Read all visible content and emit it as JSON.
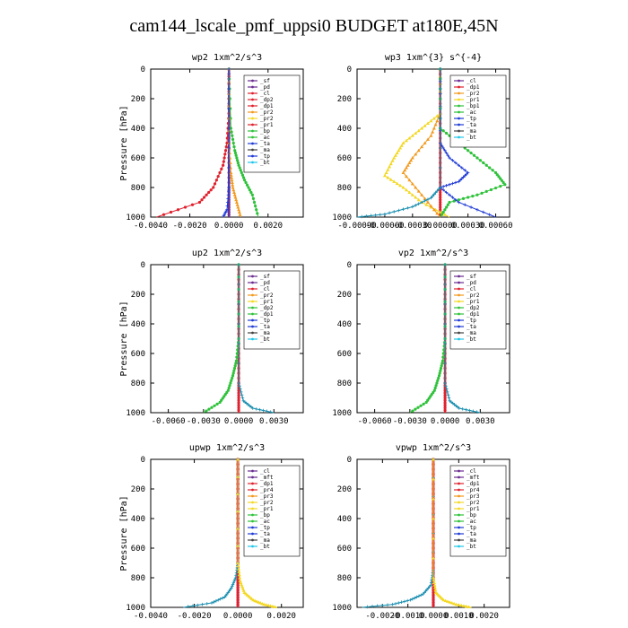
{
  "title": "cam144_lscale_pmf_uppsi0  BUDGET at180E,45N",
  "colors": {
    "purple": "#6a2c91",
    "red": "#e0212d",
    "orange": "#f39a1e",
    "yellow": "#f4d823",
    "green": "#2ec23a",
    "blue": "#1f3bd6",
    "teal": "#1a8fb0",
    "cyan": "#22c8e8",
    "gray": "#444444"
  },
  "chart_data": [
    {
      "type": "line",
      "title": "wp2  1xm^2/s^3",
      "ylabel": "Pressure [hPa]",
      "ylim": [
        1000,
        0
      ],
      "xlim": [
        -0.004,
        0.0038
      ],
      "xticks": [
        "-0.0040",
        "-0.0020",
        "0.0000",
        "0.0020"
      ],
      "xtick_values": [
        -0.004,
        -0.002,
        0.0,
        0.002
      ],
      "yticks": [
        "0",
        "200",
        "400",
        "600",
        "800",
        "1000"
      ],
      "legend": [
        "_sf",
        "_pd",
        "_cl",
        "_dp2",
        "_dp1",
        "_pr2",
        "_pr2",
        "_pr1",
        "_bp",
        "_ac",
        "_ta",
        "_ma",
        "_tp",
        "_bt"
      ],
      "legend_colors": [
        "purple",
        "purple",
        "red",
        "red",
        "red",
        "orange",
        "yellow",
        "red",
        "green",
        "green",
        "blue",
        "gray",
        "blue",
        "cyan"
      ],
      "series": [
        {
          "color": "purple",
          "x": [
            0,
            0,
            0,
            0,
            0,
            0,
            0
          ],
          "y": [
            0,
            200,
            400,
            600,
            800,
            900,
            1000
          ]
        },
        {
          "color": "red",
          "x": [
            0,
            0,
            -0.0001,
            -0.0003,
            -0.0008,
            -0.0015,
            -0.0037
          ],
          "y": [
            0,
            300,
            500,
            650,
            800,
            900,
            1000
          ]
        },
        {
          "color": "green",
          "x": [
            0,
            0.0001,
            0.0003,
            0.0005,
            0.0008,
            0.0012,
            0.0015
          ],
          "y": [
            0,
            400,
            550,
            650,
            750,
            850,
            1000
          ]
        },
        {
          "color": "orange",
          "x": [
            0,
            0,
            0.0001,
            0.0002,
            0.0004,
            0.0006
          ],
          "y": [
            0,
            500,
            700,
            800,
            900,
            1000
          ]
        },
        {
          "color": "blue",
          "x": [
            0,
            0,
            -0.0001,
            -0.0003
          ],
          "y": [
            0,
            800,
            950,
            1000
          ]
        }
      ]
    },
    {
      "type": "line",
      "title": "wp3  1xm^{3} s^{-4}",
      "ylabel": "",
      "ylim": [
        1000,
        0
      ],
      "xlim": [
        -0.0009,
        0.00075
      ],
      "xticks": [
        "-0.00090",
        "-0.00060",
        "-0.00030",
        "0.00000",
        "0.00030",
        "0.00060"
      ],
      "xtick_values": [
        -0.0009,
        -0.0006,
        -0.0003,
        0.0,
        0.0003,
        0.0006
      ],
      "yticks": [
        "0",
        "200",
        "400",
        "600",
        "800",
        "1000"
      ],
      "legend": [
        "_cl",
        "_dp1",
        "_pr2",
        "_pr1",
        "_bp1",
        "_ac",
        "_tp",
        "_ta",
        "_ma",
        "_bt"
      ],
      "legend_colors": [
        "purple",
        "red",
        "orange",
        "yellow",
        "green",
        "green",
        "blue",
        "blue",
        "gray",
        "cyan"
      ],
      "series": [
        {
          "color": "red",
          "x": [
            0,
            0,
            0,
            0,
            0,
            0,
            0
          ],
          "y": [
            0,
            200,
            400,
            600,
            800,
            900,
            1000
          ]
        },
        {
          "color": "yellow",
          "x": [
            0,
            0,
            -0.0002,
            -0.0004,
            -0.0005,
            -0.0006,
            -0.0004,
            -0.0002,
            0.0001
          ],
          "y": [
            0,
            300,
            400,
            500,
            600,
            720,
            800,
            900,
            1000
          ]
        },
        {
          "color": "orange",
          "x": [
            0,
            0,
            -0.0001,
            -0.0003,
            -0.0004,
            -0.0002,
            0
          ],
          "y": [
            0,
            300,
            450,
            600,
            700,
            850,
            1000
          ]
        },
        {
          "color": "green",
          "x": [
            0,
            0,
            0.0002,
            0.0004,
            0.0006,
            0.0007,
            0.0004,
            0.0001,
            0
          ],
          "y": [
            0,
            400,
            500,
            600,
            700,
            780,
            850,
            900,
            1000
          ]
        },
        {
          "color": "blue",
          "x": [
            0,
            0,
            0.0001,
            0.0003,
            0.0002,
            0,
            0.0002,
            0.0006
          ],
          "y": [
            0,
            500,
            600,
            700,
            760,
            800,
            900,
            1000
          ]
        },
        {
          "color": "teal",
          "x": [
            0,
            0,
            -0.0001,
            -0.0003,
            -0.0006,
            -0.0009
          ],
          "y": [
            0,
            800,
            870,
            930,
            980,
            1000
          ]
        }
      ]
    },
    {
      "type": "line",
      "title": "up2  1xm^2/s^3",
      "ylabel": "Pressure [hPa]",
      "ylim": [
        1000,
        0
      ],
      "xlim": [
        -0.0075,
        0.0055
      ],
      "xticks": [
        "-0.0060",
        "-0.0030",
        "0.0000",
        "0.0030"
      ],
      "xtick_values": [
        -0.006,
        -0.003,
        0.0,
        0.003
      ],
      "yticks": [
        "0",
        "200",
        "400",
        "600",
        "800",
        "1000"
      ],
      "legend": [
        "_sf",
        "_pd",
        "_cl",
        "_pr2",
        "_pr1",
        "_dp2",
        "_dp1",
        "_tp",
        "_ta",
        "_ma",
        "_bt"
      ],
      "legend_colors": [
        "purple",
        "purple",
        "red",
        "orange",
        "yellow",
        "green",
        "green",
        "blue",
        "blue",
        "gray",
        "cyan"
      ],
      "series": [
        {
          "color": "red",
          "x": [
            0,
            0,
            0,
            0,
            0,
            0,
            0
          ],
          "y": [
            0,
            200,
            400,
            600,
            800,
            900,
            1000
          ]
        },
        {
          "color": "green",
          "x": [
            0,
            0,
            -0.0002,
            -0.0005,
            -0.0009,
            -0.0016,
            -0.003
          ],
          "y": [
            0,
            500,
            650,
            750,
            850,
            930,
            1000
          ]
        },
        {
          "color": "teal",
          "x": [
            0,
            0,
            0.0004,
            0.0012,
            0.003
          ],
          "y": [
            0,
            800,
            920,
            970,
            1000
          ]
        }
      ]
    },
    {
      "type": "line",
      "title": "vp2  1xm^2/s^3",
      "ylabel": "",
      "ylim": [
        1000,
        0
      ],
      "xlim": [
        -0.0075,
        0.0055
      ],
      "xticks": [
        "-0.0060",
        "-0.0030",
        "0.0000",
        "0.0030"
      ],
      "xtick_values": [
        -0.006,
        -0.003,
        0.0,
        0.003
      ],
      "yticks": [
        "0",
        "200",
        "400",
        "600",
        "800",
        "1000"
      ],
      "legend": [
        "_sf",
        "_pd",
        "_cl",
        "_pr2",
        "_pr1",
        "_dp2",
        "_dp1",
        "_tp",
        "_ta",
        "_ma",
        "_bt"
      ],
      "legend_colors": [
        "purple",
        "purple",
        "red",
        "orange",
        "yellow",
        "green",
        "green",
        "blue",
        "blue",
        "gray",
        "cyan"
      ],
      "series": [
        {
          "color": "red",
          "x": [
            0,
            0,
            0,
            0,
            0,
            0,
            0
          ],
          "y": [
            0,
            200,
            400,
            600,
            800,
            900,
            1000
          ]
        },
        {
          "color": "green",
          "x": [
            0,
            0,
            -0.0002,
            -0.0005,
            -0.0009,
            -0.0016,
            -0.003
          ],
          "y": [
            0,
            500,
            650,
            750,
            850,
            930,
            1000
          ]
        },
        {
          "color": "teal",
          "x": [
            0,
            0,
            0.0004,
            0.0012,
            0.003
          ],
          "y": [
            0,
            800,
            920,
            970,
            1000
          ]
        }
      ]
    },
    {
      "type": "line",
      "title": "upwp  1xm^2/s^3",
      "ylabel": "Pressure [hPa]",
      "ylim": [
        1000,
        0
      ],
      "xlim": [
        -0.004,
        0.003
      ],
      "xticks": [
        "-0.0040",
        "-0.0020",
        "0.0000",
        "0.0020"
      ],
      "xtick_values": [
        -0.004,
        -0.002,
        0.0,
        0.002
      ],
      "yticks": [
        "0",
        "200",
        "400",
        "600",
        "800",
        "1000"
      ],
      "legend": [
        "_cl",
        "_mft",
        "_dp1",
        "_pr4",
        "_pr3",
        "_pr2",
        "_pr1",
        "_bp",
        "_ac",
        "_tp",
        "_ta",
        "_ma",
        "_bt"
      ],
      "legend_colors": [
        "purple",
        "purple",
        "red",
        "red",
        "orange",
        "yellow",
        "yellow",
        "green",
        "green",
        "blue",
        "blue",
        "gray",
        "cyan"
      ],
      "series": [
        {
          "color": "purple",
          "x": [
            0,
            0,
            0,
            0,
            0,
            0,
            0
          ],
          "y": [
            0,
            200,
            400,
            600,
            800,
            900,
            1000
          ]
        },
        {
          "color": "red",
          "x": [
            0,
            0,
            0,
            0,
            0,
            0,
            0
          ],
          "y": [
            0,
            200,
            400,
            600,
            800,
            900,
            1000
          ]
        },
        {
          "color": "teal",
          "x": [
            0,
            0,
            -0.0001,
            -0.0003,
            -0.0006,
            -0.0012,
            -0.0025
          ],
          "y": [
            0,
            700,
            800,
            870,
            930,
            970,
            1000
          ]
        },
        {
          "color": "yellow",
          "x": [
            0,
            0,
            0.0001,
            0.0003,
            0.0007,
            0.0012,
            0.0018
          ],
          "y": [
            0,
            700,
            820,
            900,
            950,
            980,
            1000
          ]
        }
      ]
    },
    {
      "type": "line",
      "title": "vpwp  1xm^2/s^3",
      "ylabel": "",
      "ylim": [
        1000,
        0
      ],
      "xlim": [
        -0.003,
        0.003
      ],
      "xticks": [
        "-0.0020",
        "-0.0010",
        "0.0000",
        "0.0010",
        "0.0020"
      ],
      "xtick_values": [
        -0.002,
        -0.001,
        0.0,
        0.001,
        0.002
      ],
      "yticks": [
        "0",
        "200",
        "400",
        "600",
        "800",
        "1000"
      ],
      "legend": [
        "_cl",
        "_mft",
        "_dp1",
        "_pr4",
        "_pr3",
        "_pr2",
        "_pr1",
        "_bp",
        "_ac",
        "_tp",
        "_ta",
        "_ma",
        "_bt"
      ],
      "legend_colors": [
        "purple",
        "purple",
        "red",
        "red",
        "orange",
        "yellow",
        "yellow",
        "green",
        "green",
        "blue",
        "blue",
        "gray",
        "cyan"
      ],
      "series": [
        {
          "color": "purple",
          "x": [
            0,
            0,
            0,
            0,
            0,
            0,
            0
          ],
          "y": [
            0,
            200,
            400,
            600,
            800,
            900,
            1000
          ]
        },
        {
          "color": "red",
          "x": [
            0,
            0,
            0,
            0,
            0,
            0,
            0
          ],
          "y": [
            0,
            200,
            400,
            600,
            800,
            900,
            1000
          ]
        },
        {
          "color": "teal",
          "x": [
            0,
            0,
            -0.0001,
            -0.0004,
            -0.0009,
            -0.0016,
            -0.0028
          ],
          "y": [
            0,
            750,
            850,
            910,
            950,
            980,
            1000
          ]
        },
        {
          "color": "yellow",
          "x": [
            0,
            0,
            0.0001,
            0.0004,
            0.0009,
            0.0015
          ],
          "y": [
            0,
            800,
            900,
            950,
            980,
            1000
          ]
        }
      ]
    }
  ]
}
